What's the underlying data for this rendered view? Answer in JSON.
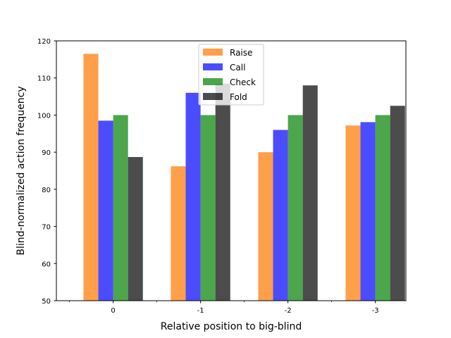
{
  "chart_data": {
    "type": "bar",
    "title": "",
    "xlabel": "Relative position to big-blind",
    "ylabel": "Blind-normalized action frequency",
    "categories": [
      "0",
      "-1",
      "-2",
      "-3"
    ],
    "ylim": [
      50,
      120
    ],
    "yticks": [
      50,
      60,
      70,
      80,
      90,
      100,
      110,
      120
    ],
    "grid": false,
    "legend_position": "top-center",
    "series": [
      {
        "name": "Raise",
        "color": "#ff7f0e",
        "opacity": 0.75,
        "values": [
          116.5,
          86.2,
          90.0,
          97.2
        ]
      },
      {
        "name": "Call",
        "color": "#0000ff",
        "opacity": 0.7,
        "values": [
          98.5,
          106.0,
          96.0,
          98.1
        ]
      },
      {
        "name": "Check",
        "color": "#008000",
        "opacity": 0.7,
        "values": [
          100.0,
          100.0,
          100.0,
          100.0
        ]
      },
      {
        "name": "Fold",
        "color": "#000000",
        "opacity": 0.7,
        "values": [
          88.7,
          108.5,
          108.0,
          102.5
        ]
      }
    ]
  }
}
